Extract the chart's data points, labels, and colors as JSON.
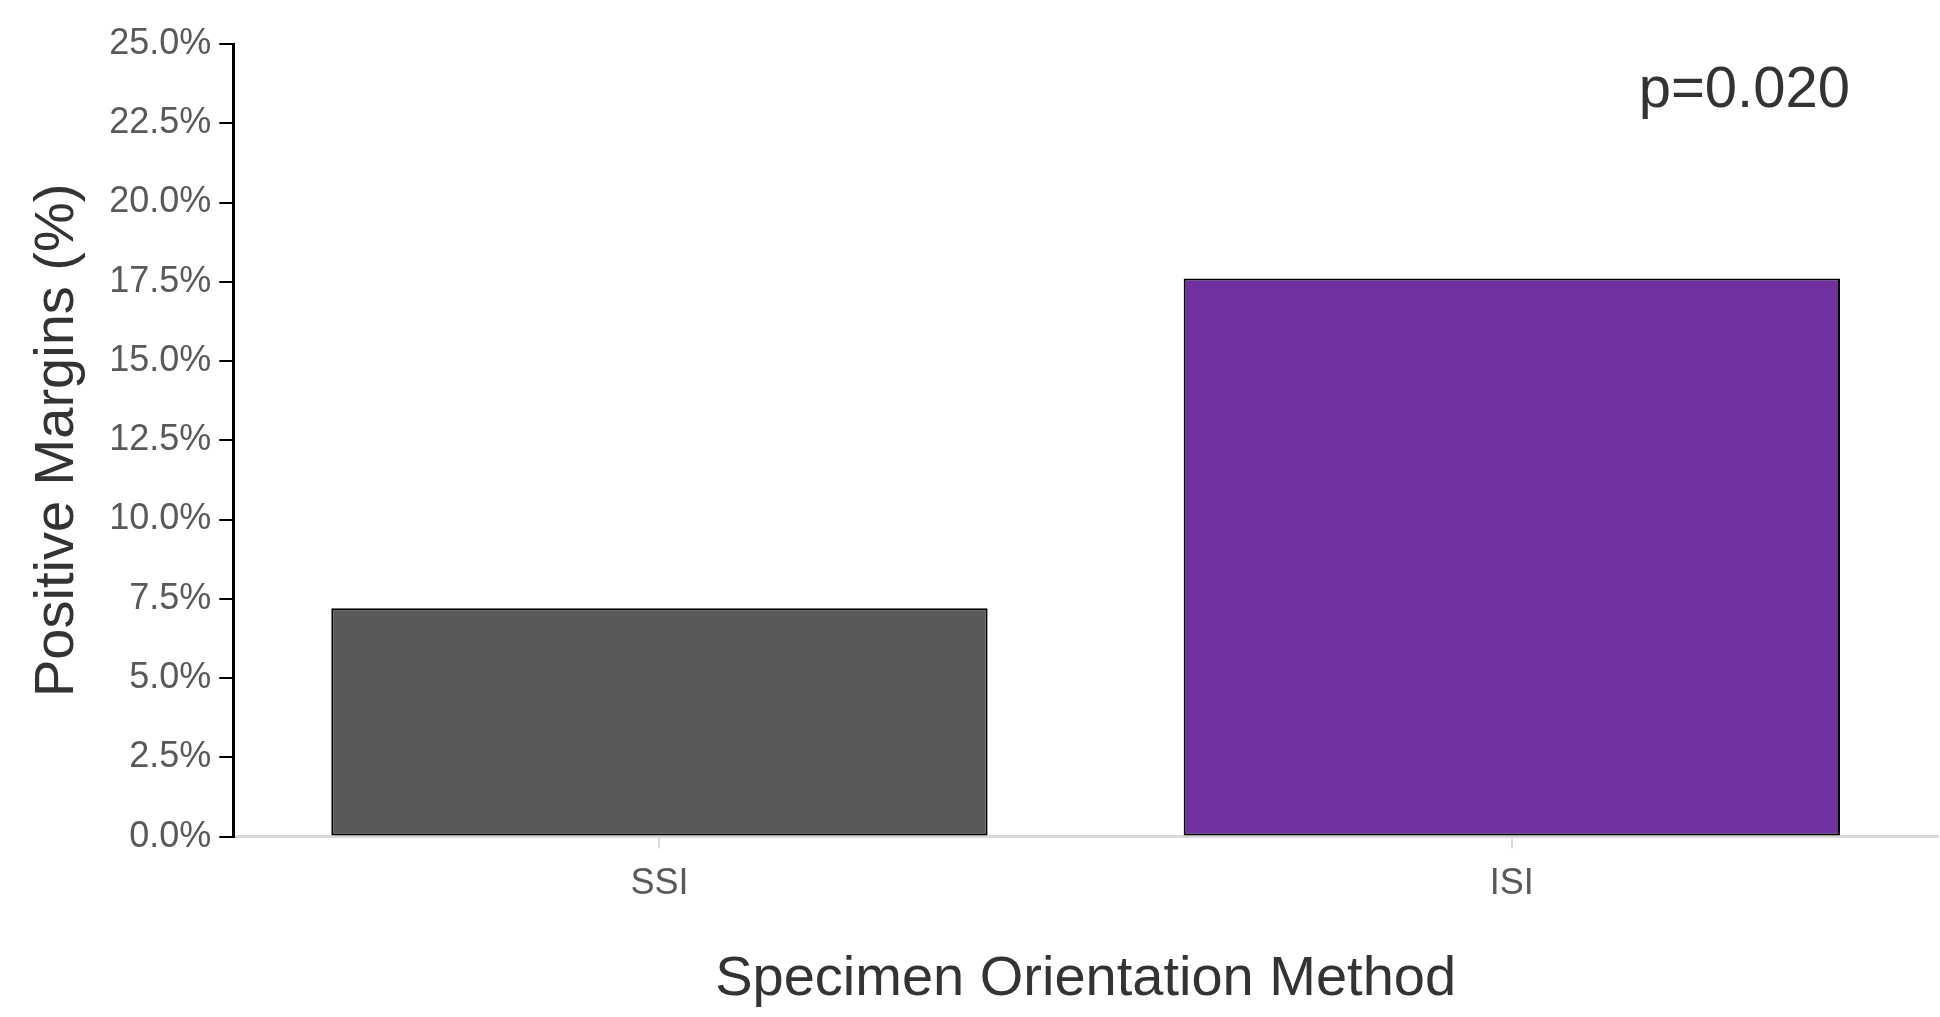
{
  "chart_data": {
    "type": "bar",
    "xlabel": "Specimen Orientation Method",
    "ylabel": "Positive Margins (%)",
    "categories": [
      "SSI",
      "ISI"
    ],
    "values": [
      7.2,
      17.6
    ],
    "colors": [
      "#595959",
      "#7030a0"
    ],
    "ylim": [
      0,
      25
    ],
    "yticks": [
      {
        "value": 0,
        "label": "0.0%"
      },
      {
        "value": 2.5,
        "label": "2.5%"
      },
      {
        "value": 5,
        "label": "5.0%"
      },
      {
        "value": 7.5,
        "label": "7.5%"
      },
      {
        "value": 10,
        "label": "10.0%"
      },
      {
        "value": 12.5,
        "label": "12.5%"
      },
      {
        "value": 15,
        "label": "15.0%"
      },
      {
        "value": 17.5,
        "label": "17.5%"
      },
      {
        "value": 20,
        "label": "20.0%"
      },
      {
        "value": 22.5,
        "label": "22.5%"
      },
      {
        "value": 25,
        "label": "25.0%"
      }
    ],
    "annotations": [
      "p=0.020"
    ]
  }
}
